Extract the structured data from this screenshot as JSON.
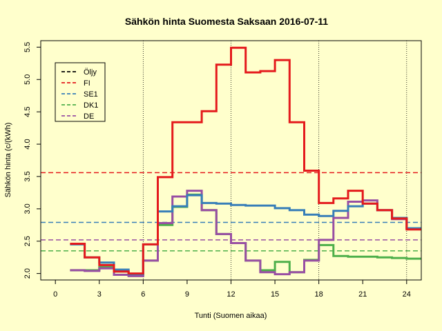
{
  "chart_data": {
    "type": "line",
    "step": true,
    "title": "Sähkön hinta Suomesta Saksaan 2016-07-11",
    "xlabel": "Tunti (Suomen aikaa)",
    "ylabel": "Sähkön hinta (c/(kWh)",
    "xlim": [
      -1,
      25
    ],
    "ylim": [
      1.9,
      5.6
    ],
    "xticks": [
      0,
      3,
      6,
      9,
      12,
      15,
      18,
      21,
      24
    ],
    "xtick_labels": [
      "0",
      "3",
      "6",
      "9",
      "12",
      "15",
      "18",
      "21",
      "24"
    ],
    "yticks": [
      2.0,
      2.5,
      3.0,
      3.5,
      4.0,
      4.5,
      5.0,
      5.5
    ],
    "ytick_labels": [
      "2.0",
      "2.5",
      "3.0",
      "3.5",
      "4.0",
      "4.5",
      "5.0",
      "5.5"
    ],
    "vlines": [
      6,
      12,
      18,
      24
    ],
    "legend": {
      "position": "top-left",
      "entries": [
        "Öljy",
        "FI",
        "SE1",
        "DK1",
        "DE"
      ]
    },
    "hlines": [
      {
        "name": "FI",
        "value": 3.56,
        "color": "#E41A1C"
      },
      {
        "name": "SE1",
        "value": 2.79,
        "color": "#377EB8"
      },
      {
        "name": "DE",
        "value": 2.52,
        "color": "#984EA3"
      },
      {
        "name": "DK1",
        "value": 2.35,
        "color": "#4DAF4A"
      }
    ],
    "series": [
      {
        "name": "Öljy",
        "color": "#000000",
        "values": []
      },
      {
        "name": "DK1",
        "color": "#4DAF4A",
        "values": [
          2.05,
          2.05,
          2.1,
          2.03,
          1.97,
          2.2,
          2.75,
          3.03,
          3.22,
          2.98,
          2.61,
          2.47,
          2.2,
          2.05,
          2.18,
          2.02,
          2.21,
          2.44,
          2.27,
          2.26,
          2.26,
          2.25,
          2.24,
          2.23
        ]
      },
      {
        "name": "DE",
        "color": "#984EA3",
        "values": [
          2.05,
          2.04,
          2.08,
          1.98,
          1.96,
          2.2,
          2.78,
          3.19,
          3.28,
          2.98,
          2.61,
          2.47,
          2.2,
          2.02,
          1.99,
          2.02,
          2.2,
          2.52,
          2.86,
          3.11,
          3.13,
          2.98,
          2.84,
          2.7
        ]
      },
      {
        "name": "SE1",
        "color": "#377EB8",
        "values": [
          2.45,
          2.25,
          2.17,
          2.06,
          1.99,
          2.45,
          2.96,
          3.04,
          3.21,
          3.09,
          3.08,
          3.06,
          3.05,
          3.05,
          3.01,
          2.98,
          2.91,
          2.89,
          2.97,
          3.04,
          3.08,
          2.98,
          2.86,
          2.7
        ]
      },
      {
        "name": "FI",
        "color": "#E41A1C",
        "values": [
          2.46,
          2.25,
          2.13,
          2.03,
          2.0,
          2.45,
          3.49,
          4.34,
          4.34,
          4.51,
          5.23,
          5.49,
          5.11,
          5.13,
          5.3,
          4.34,
          3.59,
          3.09,
          3.16,
          3.28,
          3.08,
          2.98,
          2.85,
          2.68
        ]
      }
    ]
  }
}
